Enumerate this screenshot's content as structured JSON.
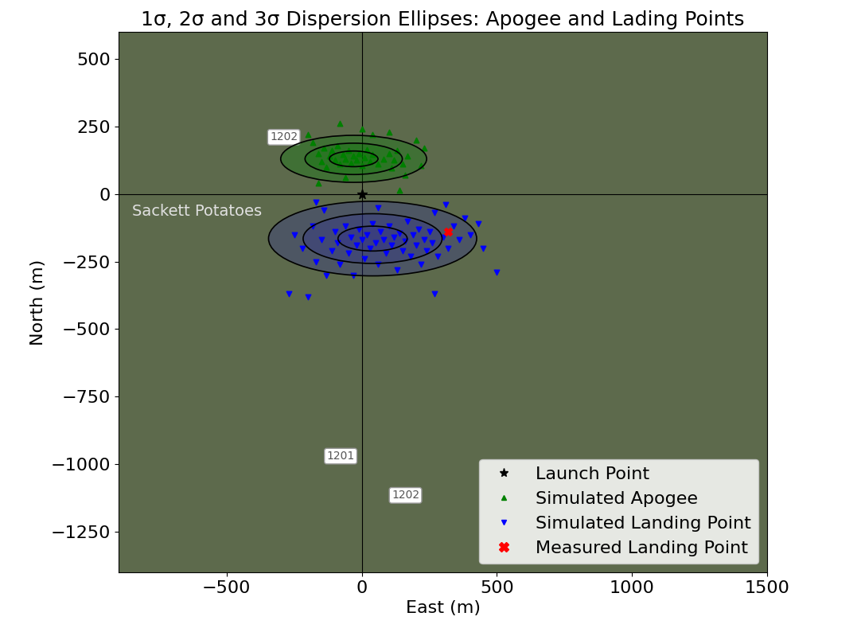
{
  "chart_data": {
    "type": "scatter",
    "title": "1σ, 2σ and 3σ Dispersion Ellipses: Apogee and Lading Points",
    "x_label": "East (m)",
    "y_label": "North (m)",
    "xlim": [
      -900,
      1500
    ],
    "ylim": [
      -1400,
      600
    ],
    "xticks": [
      {
        "value": -500,
        "label": "−500"
      },
      0,
      500,
      1000,
      1500
    ],
    "yticks": [
      {
        "value": -1250,
        "label": "−1250"
      },
      {
        "value": -1000,
        "label": "−1000"
      },
      {
        "value": -750,
        "label": "−750"
      },
      {
        "value": -500,
        "label": "−500"
      },
      {
        "value": -250,
        "label": "−250"
      },
      0,
      250,
      500
    ],
    "legend": "lower right",
    "annotations": [
      "Sackett Potatoes",
      "1202",
      "1201",
      "1202"
    ],
    "apogee_ellipses": {
      "center": [
        -30,
        130
      ],
      "half_widths": [
        90,
        180,
        270
      ],
      "half_heights": [
        29,
        58,
        87
      ],
      "color": "green"
    },
    "landing_ellipses": {
      "center": [
        40,
        -165
      ],
      "half_widths": [
        128,
        257,
        385
      ],
      "half_heights": [
        46,
        92,
        138
      ],
      "color": "#2b2b9a"
    },
    "series": [
      {
        "name": "Launch Point",
        "color": "black",
        "marker": "*",
        "x": [
          0
        ],
        "y": [
          0
        ]
      },
      {
        "name": "Simulated Apogee",
        "color": "green",
        "marker": "^",
        "x": [
          -180,
          -160,
          -150,
          -140,
          -130,
          -120,
          -110,
          -100,
          -90,
          -80,
          -70,
          -60,
          -50,
          -40,
          -30,
          -20,
          -10,
          0,
          10,
          20,
          30,
          40,
          60,
          80,
          100,
          110,
          120,
          130,
          150,
          170,
          200,
          230,
          -200,
          -80,
          40,
          100,
          160,
          140,
          -160,
          -60,
          0,
          220
        ],
        "y": [
          190,
          150,
          120,
          170,
          100,
          140,
          160,
          125,
          180,
          110,
          145,
          130,
          160,
          115,
          140,
          125,
          150,
          105,
          135,
          165,
          120,
          145,
          110,
          130,
          150,
          95,
          125,
          160,
          110,
          140,
          200,
          170,
          220,
          260,
          220,
          230,
          70,
          15,
          40,
          60,
          240,
          105
        ]
      },
      {
        "name": "Simulated Landing Point",
        "color": "blue",
        "marker": "v",
        "x": [
          -250,
          -220,
          -200,
          -180,
          -170,
          -150,
          -140,
          -130,
          -110,
          -100,
          -90,
          -80,
          -60,
          -50,
          -40,
          -30,
          -20,
          -10,
          0,
          10,
          20,
          30,
          40,
          50,
          60,
          70,
          80,
          90,
          100,
          110,
          120,
          130,
          140,
          150,
          160,
          170,
          180,
          190,
          200,
          210,
          220,
          230,
          240,
          250,
          260,
          270,
          280,
          300,
          320,
          340,
          360,
          380,
          400,
          430,
          450,
          500,
          270,
          -170,
          -270,
          60,
          310
        ],
        "y": [
          -150,
          -200,
          -380,
          -120,
          -250,
          -170,
          -60,
          -300,
          -210,
          -140,
          -180,
          -260,
          -120,
          -220,
          -160,
          -300,
          -190,
          -130,
          -170,
          -240,
          -150,
          -200,
          -110,
          -180,
          -260,
          -140,
          -170,
          -220,
          -120,
          -190,
          -160,
          -280,
          -145,
          -210,
          -175,
          -100,
          -230,
          -150,
          -190,
          -130,
          -260,
          -170,
          -210,
          -140,
          -180,
          -70,
          -230,
          -160,
          -200,
          -120,
          -170,
          -90,
          -150,
          -110,
          -200,
          -290,
          -370,
          -30,
          -370,
          -50,
          -40
        ]
      },
      {
        "name": "Measured Landing Point",
        "color": "red",
        "marker": "X",
        "x": [
          320
        ],
        "y": [
          -140
        ]
      }
    ]
  }
}
